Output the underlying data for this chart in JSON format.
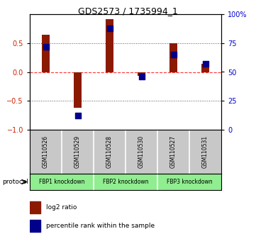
{
  "title": "GDS2573 / 1735994_1",
  "samples": [
    "GSM110526",
    "GSM110529",
    "GSM110528",
    "GSM110530",
    "GSM110527",
    "GSM110531"
  ],
  "log2_ratio": [
    0.65,
    -0.62,
    0.92,
    -0.07,
    0.5,
    0.14
  ],
  "percentile_rank": [
    0.72,
    0.12,
    0.88,
    0.46,
    0.65,
    0.57
  ],
  "bar_color": "#8B1A00",
  "dot_color": "#00008B",
  "ylim_left": [
    -1.0,
    1.0
  ],
  "ylim_right": [
    0,
    100
  ],
  "yticks_left": [
    -1.0,
    -0.5,
    0.0,
    0.5
  ],
  "yticks_right": [
    0,
    25,
    50,
    75,
    100
  ],
  "hline_zero_color": "#FF3333",
  "hline_dotted_color": "#555555",
  "legend_log2": "log2 ratio",
  "legend_pct": "percentile rank within the sample",
  "bg_color": "#ffffff",
  "axis_label_color_left": "#CC2200",
  "axis_label_color_right": "#0000CC",
  "sample_box_color": "#C8C8C8",
  "group_box_color": "#90EE90",
  "group_info": [
    [
      0,
      1,
      "FBP1 knockdown"
    ],
    [
      2,
      3,
      "FBP2 knockdown"
    ],
    [
      4,
      5,
      "FBP3 knockdown"
    ]
  ]
}
